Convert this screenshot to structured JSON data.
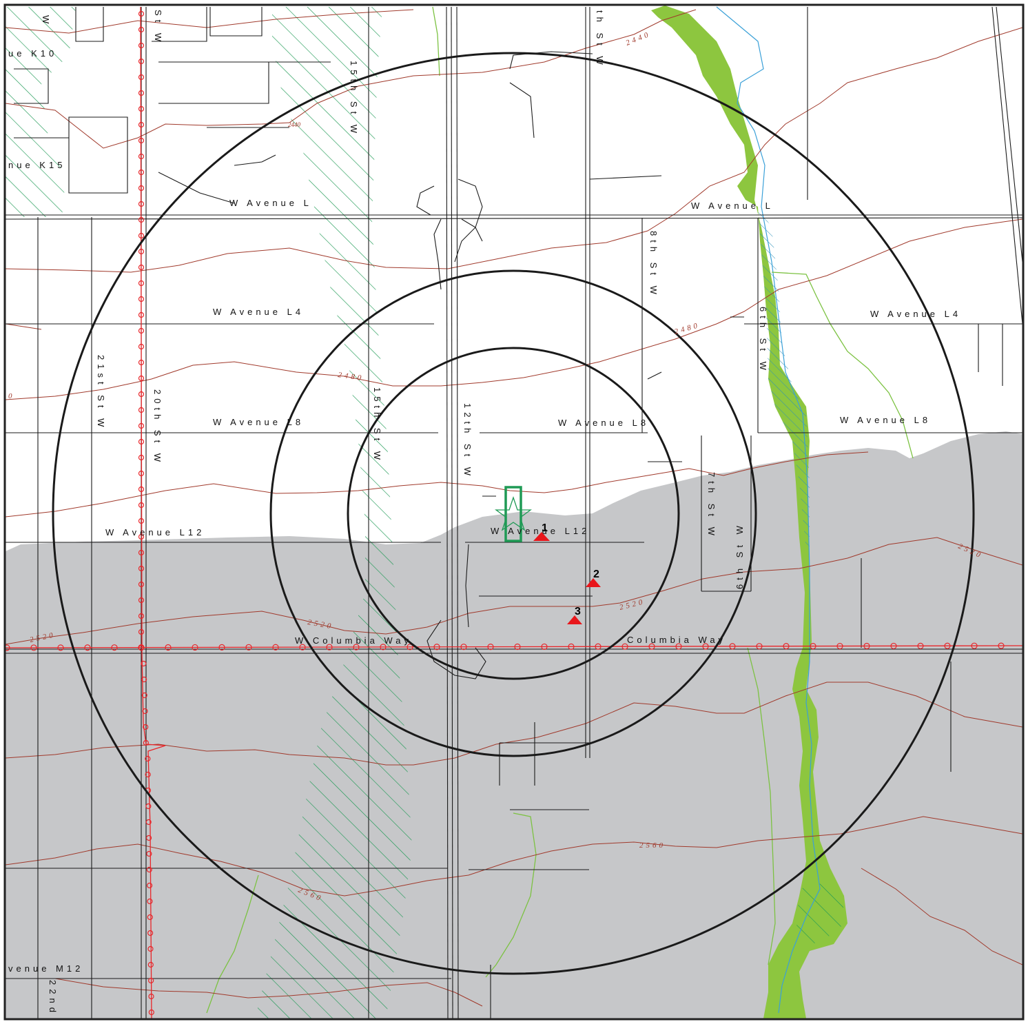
{
  "colors": {
    "background": "#ffffff",
    "gray_zone": "#c6c7c9",
    "road": "#1a1a1a",
    "contour": "#a0392b",
    "ring": "#1a1a1a",
    "hatch": "#1f9a55",
    "river_fill": "#8dc63f",
    "stream": "#3aa0d8",
    "creek": "#7cc242",
    "power_line": "#e8262a",
    "marker": "#e8161b",
    "site_marker": "#1f9a55",
    "frame": "#222222"
  },
  "streets": {
    "w_avenue_l_left": "W Avenue L",
    "w_avenue_l_right": "W Avenue L",
    "w_avenue_l4_left": "W Avenue L4",
    "w_avenue_l4_right": "W Avenue L4",
    "w_avenue_l8_left": "W Avenue L8",
    "w_avenue_l8_mid": "W Avenue L8",
    "w_avenue_l8_right": "W Avenue L8",
    "w_avenue_l12_left": "W Avenue L12",
    "w_avenue_l12_mid": "W Avenue L12",
    "w_columbia_way": "W Columbia Way",
    "columbia_way_right": "Columbia Way",
    "avenue_m12": "venue M12",
    "avenue_k10": "ue K10",
    "avenue_k15": "nue K15",
    "st_21st": "21st St W",
    "st_20th": "20th St W",
    "st_15th_upper": "15th St W",
    "st_15th_lower": "15th St W",
    "st_12th": "12th St W",
    "st_10th_top": "th St W",
    "st_8th": "8th St W",
    "st_7th": "7th St W",
    "st_6th_upper": "6th St W",
    "st_6th_lower": "6th St W",
    "st_22nd": "22nd",
    "st_top_left": "St W",
    "w_top_left": "W"
  },
  "contours": {
    "c2440_top": "2440",
    "c2440_small": "2440",
    "c2480_center": "2480",
    "c2480_right": "2480",
    "c2520_left": "2520",
    "c2520_mid": "2520",
    "c2520_right": "2520",
    "c2520_center": "2520",
    "c2560_right": "2560",
    "c2560_left": "2560",
    "c_partial": "0"
  },
  "markers": [
    {
      "id": "1"
    },
    {
      "id": "2"
    },
    {
      "id": "3"
    }
  ]
}
